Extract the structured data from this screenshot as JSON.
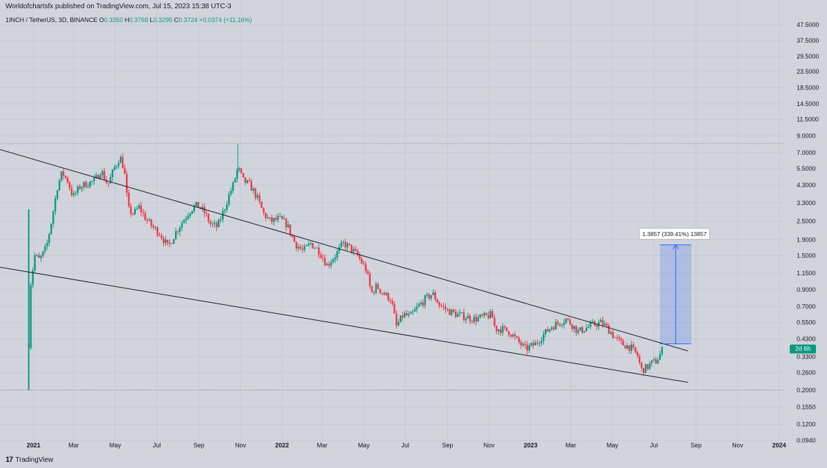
{
  "publisher_line": "Worldofchartsfx published on TradingView.com, Jul 15, 2023 15:38 UTC-3",
  "symbol": {
    "name": "1INCH / TetherUS, 3D, BINANCE",
    "open_label": "O",
    "open": "0.3350",
    "high_label": "H",
    "high": "0.3769",
    "low_label": "L",
    "low": "0.3295",
    "close_label": "C",
    "close": "0.3724",
    "change": "+0.0374 (+11.16%)"
  },
  "brand": {
    "logo": "17",
    "name": "TradingView"
  },
  "colors": {
    "up": "#089981",
    "down": "#f23645",
    "background": "#d1d4dc",
    "trendline": "#131722",
    "measure_fill": "#2962ff",
    "price_label_bg": "#089981"
  },
  "chart_data": {
    "type": "candlestick",
    "scale": "log",
    "timeframe": "3D",
    "y_ticks": [
      "47.5000",
      "37.5000",
      "29.5000",
      "23.5000",
      "18.5000",
      "14.5000",
      "11.5000",
      "9.0000",
      "7.0000",
      "5.5000",
      "4.3000",
      "3.3000",
      "2.5000",
      "1.9000",
      "1.5000",
      "1.1500",
      "0.9000",
      "0.7000",
      "0.5500",
      "0.4300",
      "0.3300",
      "0.2600",
      "0.2000",
      "0.1550",
      "0.1200",
      "0.0940"
    ],
    "x_ticks": [
      "2021",
      "Mar",
      "May",
      "Jul",
      "Sep",
      "Nov",
      "2022",
      "Mar",
      "May",
      "Jul",
      "Sep",
      "Nov",
      "2023",
      "Mar",
      "May",
      "Jul",
      "Sep",
      "Nov",
      "2024"
    ],
    "xlim": [
      "2020-12-01",
      "2024-02-15"
    ],
    "ylim": [
      0.085,
      62
    ],
    "current_price_tag": "2d 6h",
    "high_line_value": 8.0,
    "low_line_value": 0.2,
    "trendlines": [
      {
        "name": "upper",
        "from": [
          "2020-02-15",
          16.5
        ],
        "to": [
          "2023-08-20",
          0.36
        ]
      },
      {
        "name": "lower",
        "from": [
          "2020-02-10",
          2.02
        ],
        "to": [
          "2023-08-20",
          0.225
        ]
      }
    ],
    "measure": {
      "label": "1.3857 (339.41%) 13857",
      "from_date": "2023-07-10",
      "to_date": "2023-08-25",
      "low": 0.4,
      "high": 1.76
    },
    "price_path": [
      [
        "2020-12-25",
        0.4
      ],
      [
        "2020-12-28",
        1.0
      ],
      [
        "2021-01-03",
        1.5
      ],
      [
        "2021-01-10",
        1.4
      ],
      [
        "2021-01-20",
        1.7
      ],
      [
        "2021-01-28",
        2.6
      ],
      [
        "2021-02-05",
        4.2
      ],
      [
        "2021-02-12",
        5.2
      ],
      [
        "2021-02-20",
        4.6
      ],
      [
        "2021-02-28",
        3.6
      ],
      [
        "2021-03-10",
        4.2
      ],
      [
        "2021-03-20",
        4.4
      ],
      [
        "2021-04-01",
        4.6
      ],
      [
        "2021-04-10",
        5.4
      ],
      [
        "2021-04-20",
        4.3
      ],
      [
        "2021-04-30",
        5.6
      ],
      [
        "2021-05-08",
        6.6
      ],
      [
        "2021-05-14",
        5.5
      ],
      [
        "2021-05-20",
        3.0
      ],
      [
        "2021-05-28",
        2.8
      ],
      [
        "2021-06-05",
        3.1
      ],
      [
        "2021-06-15",
        2.6
      ],
      [
        "2021-06-25",
        2.3
      ],
      [
        "2021-07-05",
        2.1
      ],
      [
        "2021-07-18",
        1.7
      ],
      [
        "2021-07-28",
        2.1
      ],
      [
        "2021-08-08",
        2.5
      ],
      [
        "2021-08-20",
        3.0
      ],
      [
        "2021-08-30",
        3.2
      ],
      [
        "2021-09-08",
        2.9
      ],
      [
        "2021-09-18",
        2.4
      ],
      [
        "2021-09-28",
        2.3
      ],
      [
        "2021-10-08",
        3.0
      ],
      [
        "2021-10-15",
        3.7
      ],
      [
        "2021-10-22",
        4.4
      ],
      [
        "2021-10-28",
        5.6
      ],
      [
        "2021-11-05",
        4.6
      ],
      [
        "2021-11-15",
        4.3
      ],
      [
        "2021-11-25",
        3.6
      ],
      [
        "2021-12-05",
        2.8
      ],
      [
        "2021-12-15",
        2.5
      ],
      [
        "2021-12-28",
        2.6
      ],
      [
        "2022-01-08",
        2.4
      ],
      [
        "2022-01-20",
        1.8
      ],
      [
        "2022-02-01",
        1.6
      ],
      [
        "2022-02-12",
        1.8
      ],
      [
        "2022-02-25",
        1.6
      ],
      [
        "2022-03-08",
        1.3
      ],
      [
        "2022-03-20",
        1.5
      ],
      [
        "2022-04-01",
        1.8
      ],
      [
        "2022-04-10",
        1.7
      ],
      [
        "2022-04-22",
        1.5
      ],
      [
        "2022-05-05",
        1.2
      ],
      [
        "2022-05-12",
        0.85
      ],
      [
        "2022-05-20",
        0.95
      ],
      [
        "2022-05-30",
        0.85
      ],
      [
        "2022-06-10",
        0.78
      ],
      [
        "2022-06-18",
        0.52
      ],
      [
        "2022-06-28",
        0.62
      ],
      [
        "2022-07-08",
        0.6
      ],
      [
        "2022-07-20",
        0.7
      ],
      [
        "2022-07-30",
        0.78
      ],
      [
        "2022-08-10",
        0.85
      ],
      [
        "2022-08-20",
        0.72
      ],
      [
        "2022-09-01",
        0.66
      ],
      [
        "2022-09-15",
        0.62
      ],
      [
        "2022-09-28",
        0.6
      ],
      [
        "2022-10-10",
        0.58
      ],
      [
        "2022-10-25",
        0.6
      ],
      [
        "2022-11-05",
        0.62
      ],
      [
        "2022-11-10",
        0.5
      ],
      [
        "2022-11-20",
        0.5
      ],
      [
        "2022-12-01",
        0.48
      ],
      [
        "2022-12-12",
        0.42
      ],
      [
        "2022-12-25",
        0.37
      ],
      [
        "2023-01-08",
        0.4
      ],
      [
        "2023-01-20",
        0.46
      ],
      [
        "2023-02-01",
        0.52
      ],
      [
        "2023-02-12",
        0.55
      ],
      [
        "2023-02-22",
        0.58
      ],
      [
        "2023-03-05",
        0.52
      ],
      [
        "2023-03-12",
        0.48
      ],
      [
        "2023-03-20",
        0.5
      ],
      [
        "2023-04-01",
        0.53
      ],
      [
        "2023-04-15",
        0.55
      ],
      [
        "2023-04-25",
        0.5
      ],
      [
        "2023-05-05",
        0.44
      ],
      [
        "2023-05-15",
        0.4
      ],
      [
        "2023-05-28",
        0.38
      ],
      [
        "2023-06-08",
        0.33
      ],
      [
        "2023-06-12",
        0.27
      ],
      [
        "2023-06-20",
        0.28
      ],
      [
        "2023-06-28",
        0.3
      ],
      [
        "2023-07-05",
        0.31
      ],
      [
        "2023-07-10",
        0.34
      ],
      [
        "2023-07-14",
        0.3724
      ]
    ]
  }
}
